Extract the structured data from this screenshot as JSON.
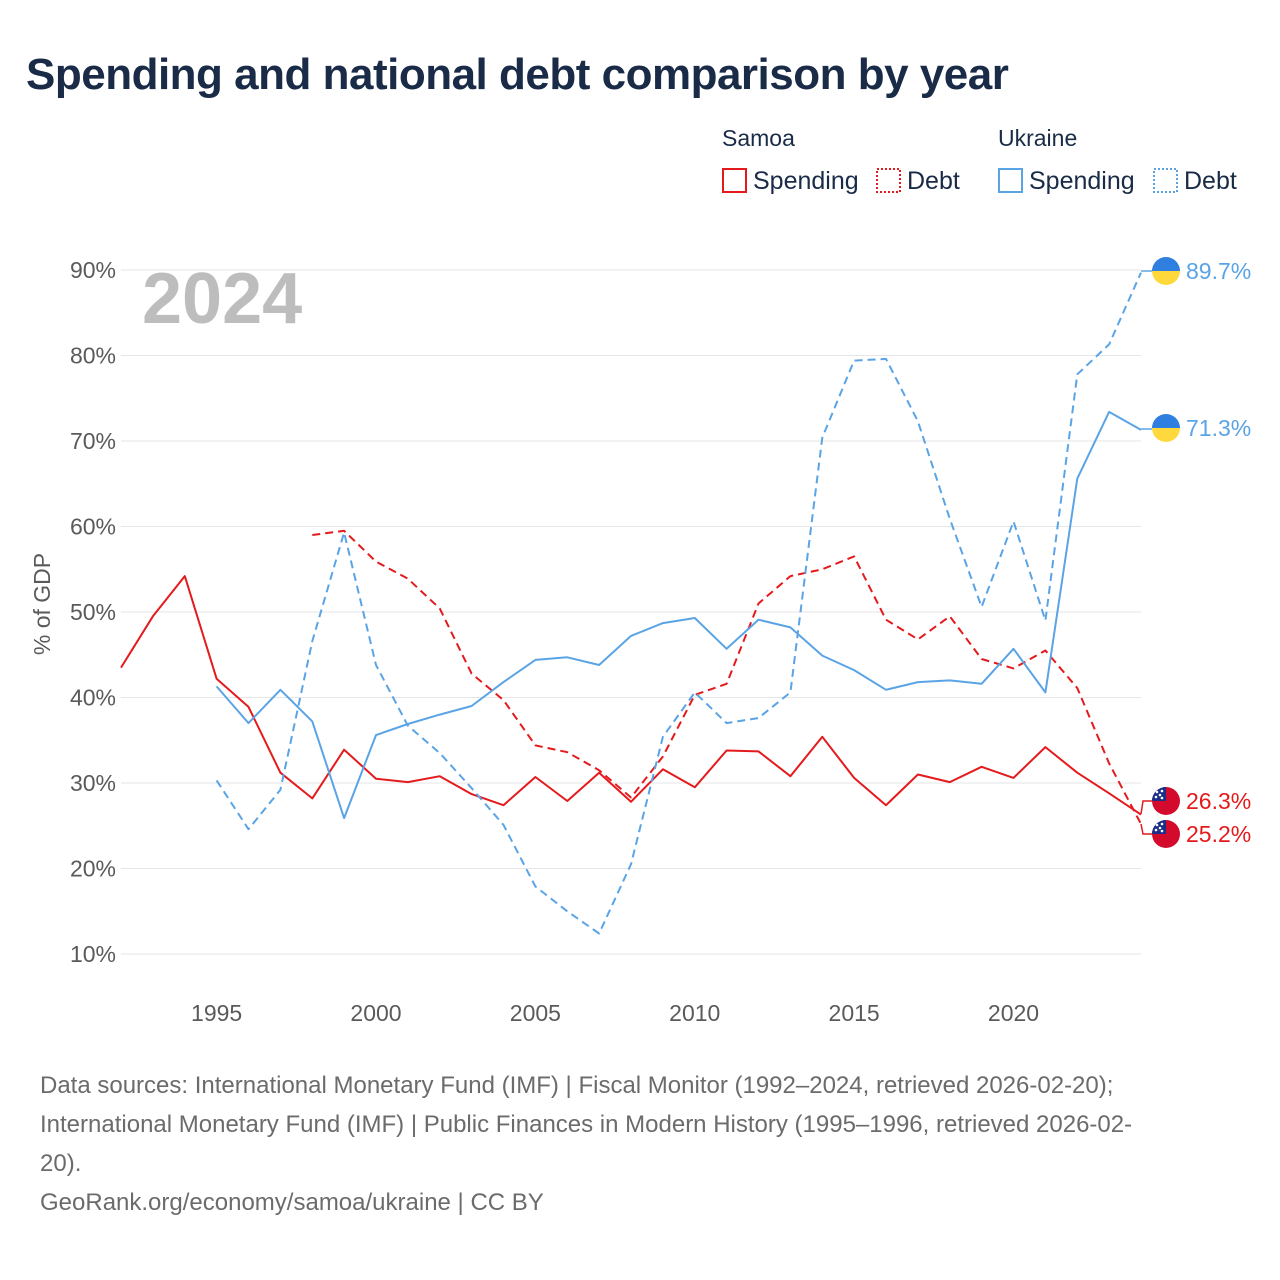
{
  "title": "Spending and national debt comparison by year",
  "year_watermark": "2024",
  "legend": {
    "groups": [
      {
        "title": "Samoa",
        "color": "#e41a1c",
        "items": [
          "Spending",
          "Debt"
        ]
      },
      {
        "title": "Ukraine",
        "color": "#5aa4e6",
        "items": [
          "Spending",
          "Debt"
        ]
      }
    ]
  },
  "chart_data": {
    "type": "line",
    "title": "Spending and national debt comparison by year",
    "xlabel": "",
    "ylabel": "% of GDP",
    "xlim": [
      1992,
      2024
    ],
    "ylim": [
      5,
      95
    ],
    "x_ticks": [
      1995,
      2000,
      2005,
      2010,
      2015,
      2020
    ],
    "y_ticks": [
      10,
      20,
      30,
      40,
      50,
      60,
      70,
      80,
      90
    ],
    "y_tick_labels": [
      "10%",
      "20%",
      "30%",
      "40%",
      "50%",
      "60%",
      "70%",
      "80%",
      "90%"
    ],
    "grid": true,
    "series": [
      {
        "name": "Samoa Spending",
        "country": "Samoa",
        "measure": "Spending",
        "color": "#e41a1c",
        "dash": "solid",
        "start_year": 1992,
        "values": [
          43.5,
          49.5,
          54.2,
          42.2,
          38.9,
          31.2,
          28.2,
          33.9,
          30.5,
          30.1,
          30.8,
          28.7,
          27.4,
          30.7,
          27.9,
          31.2,
          27.8,
          31.6,
          29.5,
          33.8,
          33.7,
          30.8,
          35.4,
          30.6,
          27.4,
          31.0,
          30.1,
          31.9,
          30.6,
          34.2,
          31.2,
          28.8,
          26.3
        ],
        "end_label": "26.3%"
      },
      {
        "name": "Samoa Debt",
        "country": "Samoa",
        "measure": "Debt",
        "color": "#e41a1c",
        "dash": "dashed",
        "start_year": 1998,
        "values": [
          59.0,
          59.5,
          55.9,
          53.9,
          50.4,
          42.8,
          39.7,
          34.4,
          33.6,
          31.5,
          28.3,
          33.1,
          40.3,
          41.6,
          51.0,
          54.2,
          55.0,
          56.5,
          49.1,
          46.8,
          49.5,
          44.5,
          43.4,
          45.5,
          41.1,
          32.3,
          25.2
        ],
        "end_label": "25.2%"
      },
      {
        "name": "Ukraine Spending",
        "country": "Ukraine",
        "measure": "Spending",
        "color": "#5aa4e6",
        "dash": "solid",
        "start_year": 1995,
        "values": [
          41.3,
          37.0,
          40.9,
          37.2,
          25.9,
          35.6,
          36.9,
          38.0,
          39.0,
          41.8,
          44.4,
          44.7,
          43.8,
          47.2,
          48.7,
          49.3,
          45.7,
          49.1,
          48.2,
          44.9,
          43.2,
          40.9,
          41.8,
          42.0,
          41.6,
          45.7,
          40.6,
          65.6,
          73.4,
          71.3
        ],
        "end_label": "71.3%"
      },
      {
        "name": "Ukraine Debt",
        "country": "Ukraine",
        "measure": "Debt",
        "color": "#5aa4e6",
        "dash": "dashed",
        "start_year": 1995,
        "values": [
          30.3,
          24.6,
          29.2,
          46.6,
          59.3,
          43.8,
          36.7,
          33.5,
          29.4,
          25.1,
          17.9,
          15.0,
          12.4,
          20.5,
          35.4,
          40.6,
          37.0,
          37.6,
          40.6,
          70.4,
          79.4,
          79.6,
          72.3,
          60.9,
          50.6,
          60.6,
          49.0,
          77.8,
          81.3,
          89.7
        ],
        "end_label": "89.7%"
      }
    ]
  },
  "sources": {
    "line1": "Data sources: International Monetary Fund (IMF) | Fiscal Monitor (1992–2024, retrieved 2026-02-20);",
    "line2": "International Monetary Fund (IMF) | Public Finances in Modern History (1995–1996, retrieved 2026-02-",
    "line3": "20).",
    "credit": "GeoRank.org/economy/samoa/ukraine | CC BY"
  }
}
